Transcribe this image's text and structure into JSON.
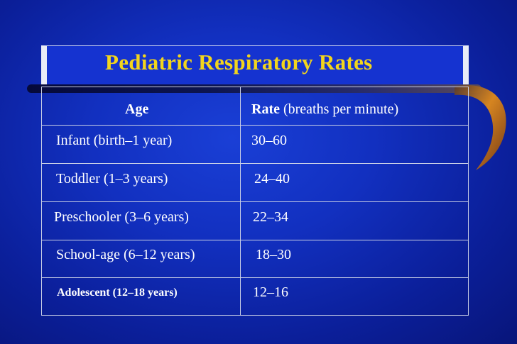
{
  "title": "Pediatric Respiratory Rates",
  "header": {
    "age": "Age",
    "rate_bold": "Rate",
    "rate_rest": "(breaths per minute)"
  },
  "rows": [
    {
      "age": "Infant (birth–1 year)",
      "rate": "30–60"
    },
    {
      "age": "Toddler (1–3 years)",
      "rate": "24–40"
    },
    {
      "age": "Preschooler (3–6 years)",
      "rate": "22–34"
    },
    {
      "age": "School-age (6–12 years)",
      "rate": "18–30"
    },
    {
      "age": "Adolescent (12–18 years)",
      "rate": "12–16"
    }
  ],
  "colors": {
    "title": "#f2d51c",
    "background": "#1230c0",
    "text": "#ffffff",
    "gridline": "#c9cfe6"
  }
}
